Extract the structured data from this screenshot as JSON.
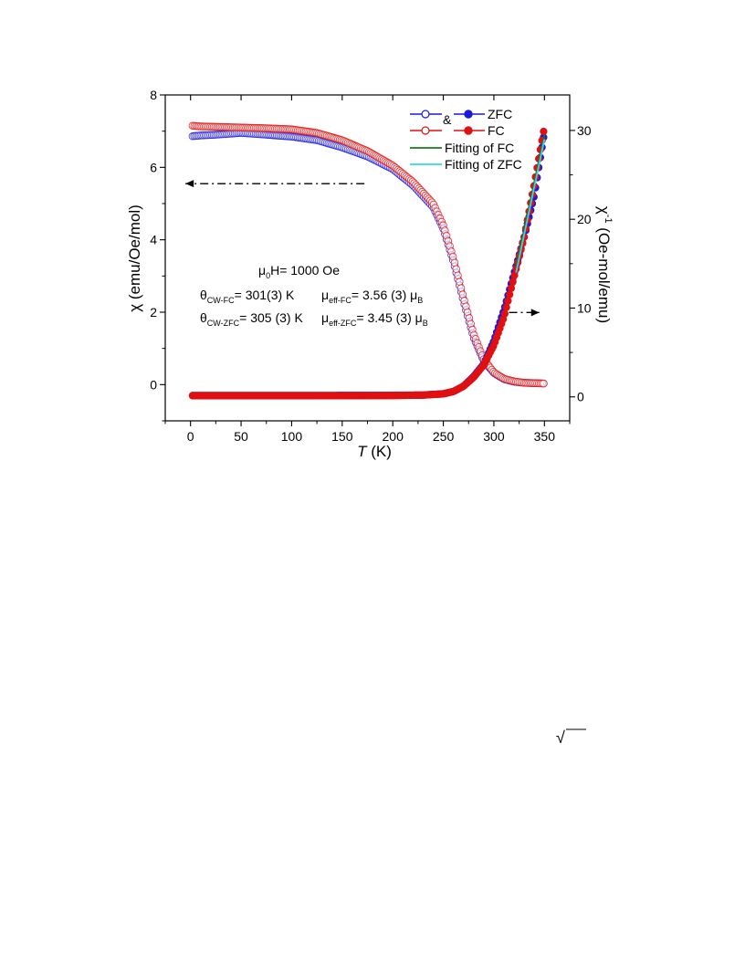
{
  "chart_data": {
    "type": "scatter",
    "x_axis": {
      "label_prefix": "",
      "label_italic": "T",
      "label_suffix": " (K)",
      "range": [
        -25,
        375
      ],
      "ticks": [
        0,
        50,
        100,
        150,
        200,
        250,
        300,
        350
      ],
      "tick_labels": [
        "0",
        "50",
        "100",
        "150",
        "200",
        "250",
        "300",
        "350"
      ]
    },
    "y_axis_left": {
      "label_symbol": "χ",
      "label_rest": " (emu/Oe/mol)",
      "range": [
        -1,
        8
      ],
      "ticks": [
        0,
        2,
        4,
        6,
        8
      ],
      "tick_labels": [
        "0",
        "2",
        "4",
        "6",
        "8"
      ]
    },
    "y_axis_right": {
      "label_symbol": "χ",
      "label_sup": "-1",
      "label_rest": " (Oe-mol/emu)",
      "range": [
        -2.7,
        34
      ],
      "ticks": [
        0,
        10,
        20,
        30
      ],
      "tick_labels": [
        "0",
        "10",
        "20",
        "30"
      ]
    },
    "legend": {
      "position": "top-right",
      "connector": "&",
      "entries": [
        {
          "label": "ZFC",
          "color": "#1a1adc",
          "open_marker": true,
          "filled_marker": true
        },
        {
          "label": "FC",
          "color": "#e01010",
          "open_marker": true,
          "filled_marker": true
        },
        {
          "label": "Fitting of FC",
          "color": "#1a7a1a",
          "line_only": true
        },
        {
          "label": "Fitting of ZFC",
          "color": "#33d6f0",
          "line_only": true
        }
      ]
    },
    "annotations": {
      "field_pre": "μ",
      "field_sub": "0",
      "field_post": "H= 1000 Oe",
      "theta_fc_sym": "θ",
      "theta_fc_sub": "CW-FC",
      "theta_fc_val": "= 301(3) K",
      "mu_fc_sym": "μ",
      "mu_fc_sub": "eff-FC",
      "mu_fc_val": "= 3.56 (3) μ",
      "mu_fc_unit_sub": "B",
      "theta_zfc_sym": "θ",
      "theta_zfc_sub": "CW-ZFC",
      "theta_zfc_val": "= 305 (3) K",
      "mu_zfc_sym": "μ",
      "mu_zfc_sub": "eff-ZFC",
      "mu_zfc_val": "= 3.45 (3) μ",
      "mu_zfc_unit_sub": "B"
    },
    "series": [
      {
        "name": "ZFC",
        "axis": "left",
        "marker": "open",
        "color": "#1a1adc",
        "x": [
          2,
          10,
          25,
          50,
          75,
          100,
          125,
          150,
          175,
          200,
          220,
          240,
          250,
          260,
          270,
          280,
          290,
          300,
          310,
          320,
          330,
          340,
          350
        ],
        "y": [
          6.86,
          6.88,
          6.9,
          6.95,
          6.9,
          6.85,
          6.75,
          6.55,
          6.3,
          5.95,
          5.5,
          4.9,
          4.3,
          3.4,
          2.3,
          1.3,
          0.65,
          0.32,
          0.15,
          0.08,
          0.05,
          0.04,
          0.03
        ]
      },
      {
        "name": "FC",
        "axis": "left",
        "marker": "open",
        "color": "#e01010",
        "x": [
          2,
          10,
          25,
          50,
          75,
          100,
          125,
          150,
          175,
          200,
          220,
          240,
          250,
          260,
          270,
          280,
          290,
          300,
          310,
          320,
          330,
          340,
          350
        ],
        "y": [
          7.15,
          7.13,
          7.12,
          7.1,
          7.08,
          7.05,
          6.95,
          6.75,
          6.45,
          6.05,
          5.6,
          5.0,
          4.4,
          3.5,
          2.4,
          1.4,
          0.7,
          0.34,
          0.16,
          0.09,
          0.05,
          0.04,
          0.03
        ]
      },
      {
        "name": "ZFC",
        "axis": "right",
        "marker": "filled",
        "color": "#1a1adc",
        "x": [
          2,
          50,
          100,
          150,
          200,
          230,
          250,
          260,
          270,
          280,
          290,
          300,
          310,
          320,
          330,
          340,
          350
        ],
        "y": [
          0.14,
          0.14,
          0.14,
          0.15,
          0.16,
          0.2,
          0.35,
          0.6,
          1.2,
          2.3,
          3.7,
          6.3,
          9.8,
          13.9,
          18.0,
          22.7,
          29.8
        ]
      },
      {
        "name": "FC",
        "axis": "right",
        "marker": "filled",
        "color": "#e01010",
        "x": [
          2,
          50,
          100,
          150,
          200,
          230,
          250,
          260,
          270,
          280,
          290,
          300,
          310,
          320,
          330,
          340,
          350
        ],
        "y": [
          0.14,
          0.14,
          0.14,
          0.14,
          0.15,
          0.2,
          0.33,
          0.6,
          1.2,
          2.2,
          3.6,
          5.8,
          9.0,
          13.5,
          18.0,
          24.0,
          30.4
        ]
      }
    ],
    "fits": [
      {
        "name": "Fitting of FC",
        "axis": "right",
        "color": "#1a7a1a",
        "x": [
          322,
          350
        ],
        "y": [
          14.6,
          29.5
        ]
      },
      {
        "name": "Fitting of ZFC",
        "axis": "right",
        "color": "#33d6f0",
        "x": [
          322,
          350
        ],
        "y": [
          14.0,
          29.0
        ]
      }
    ],
    "arrows": [
      {
        "axis": "left",
        "direction": "left",
        "x_from": 172,
        "x_to": -5,
        "y": 5.55
      },
      {
        "axis": "right",
        "direction": "right",
        "x_from": 315,
        "x_to": 345,
        "y": 9.5
      }
    ]
  },
  "page": {
    "stray_mark": "√"
  }
}
